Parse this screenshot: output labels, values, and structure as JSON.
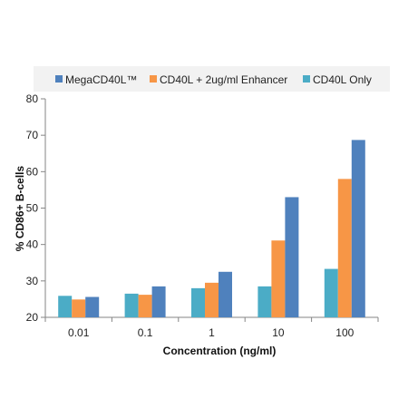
{
  "chart_data": {
    "type": "bar",
    "categories": [
      "0.01",
      "0.1",
      "1",
      "10",
      "100"
    ],
    "series": [
      {
        "name": "CD40L Only",
        "color": "#4bacc6",
        "values": [
          25.9,
          26.5,
          28.0,
          28.5,
          33.3
        ]
      },
      {
        "name": "CD40L + 2ug/ml Enhancer",
        "color": "#f79646",
        "values": [
          24.9,
          26.2,
          29.5,
          41.1,
          58.0
        ]
      },
      {
        "name": "MegaCD40L™",
        "color": "#4f81bd",
        "values": [
          25.6,
          28.5,
          32.5,
          53.0,
          68.7
        ]
      }
    ],
    "legend_order": [
      2,
      1,
      0
    ],
    "legend_position": "top",
    "xlabel": "Concentration (ng/ml)",
    "ylabel": "% CD86+ B-cells",
    "ylim": [
      20,
      80
    ],
    "yticks": [
      "20",
      "30",
      "40",
      "50",
      "60",
      "70",
      "80"
    ],
    "grid": false
  }
}
